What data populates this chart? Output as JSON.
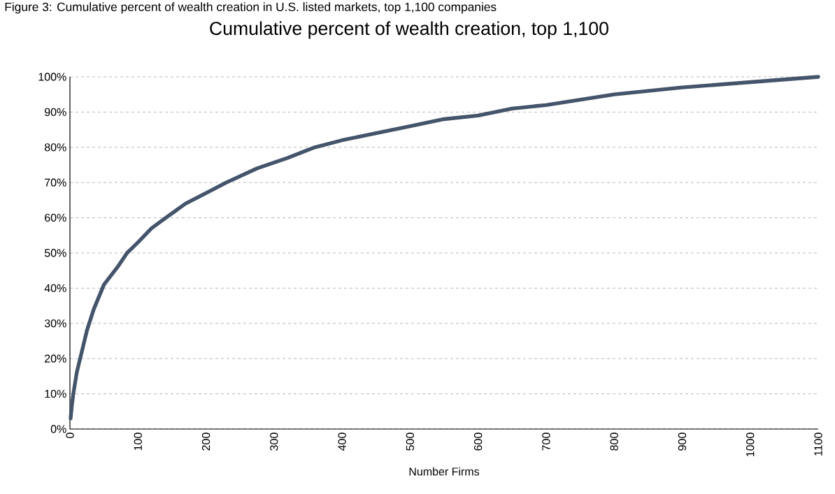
{
  "chart_data": {
    "type": "line",
    "title": "Cumulative percent of wealth creation, top 1,100",
    "xlabel": "Number Firms",
    "annotations": [
      "Figure 3: Cumulative percent of wealth creation in U.S. listed markets, top 1,100 companies"
    ],
    "series": [
      {
        "color": "#44546a",
        "x": [
          1,
          3,
          5,
          10,
          15,
          20,
          25,
          35,
          50,
          70,
          84,
          100,
          120,
          141,
          170,
          200,
          230,
          275,
          320,
          360,
          400,
          450,
          500,
          550,
          600,
          650,
          700,
          800,
          900,
          1000,
          1100
        ],
        "values": [
          3,
          7,
          10,
          16,
          20,
          24,
          28,
          34,
          41,
          46,
          50,
          53,
          57,
          60,
          64,
          67,
          70,
          74,
          77,
          80,
          82,
          84,
          86,
          88,
          89,
          91,
          92,
          95,
          97,
          98.5,
          100
        ]
      }
    ],
    "xlim": [
      0,
      1100
    ],
    "xticks": [
      0,
      100,
      200,
      300,
      400,
      500,
      600,
      700,
      800,
      900,
      1000,
      1100
    ],
    "ylim": [
      0,
      100
    ],
    "yticks": [
      {
        "value": 0,
        "label": "0%"
      },
      {
        "value": 10,
        "label": "10%"
      },
      {
        "value": 20,
        "label": "20%"
      },
      {
        "value": 30,
        "label": "30%"
      },
      {
        "value": 40,
        "label": "40%"
      },
      {
        "value": 50,
        "label": "50%"
      },
      {
        "value": 60,
        "label": "60%"
      },
      {
        "value": 70,
        "label": "70%"
      },
      {
        "value": 80,
        "label": "80%"
      },
      {
        "value": 90,
        "label": "90%"
      },
      {
        "value": 100,
        "label": "100%"
      }
    ],
    "grid": "y",
    "legend": false,
    "marker": "none",
    "line_style": "solid"
  }
}
